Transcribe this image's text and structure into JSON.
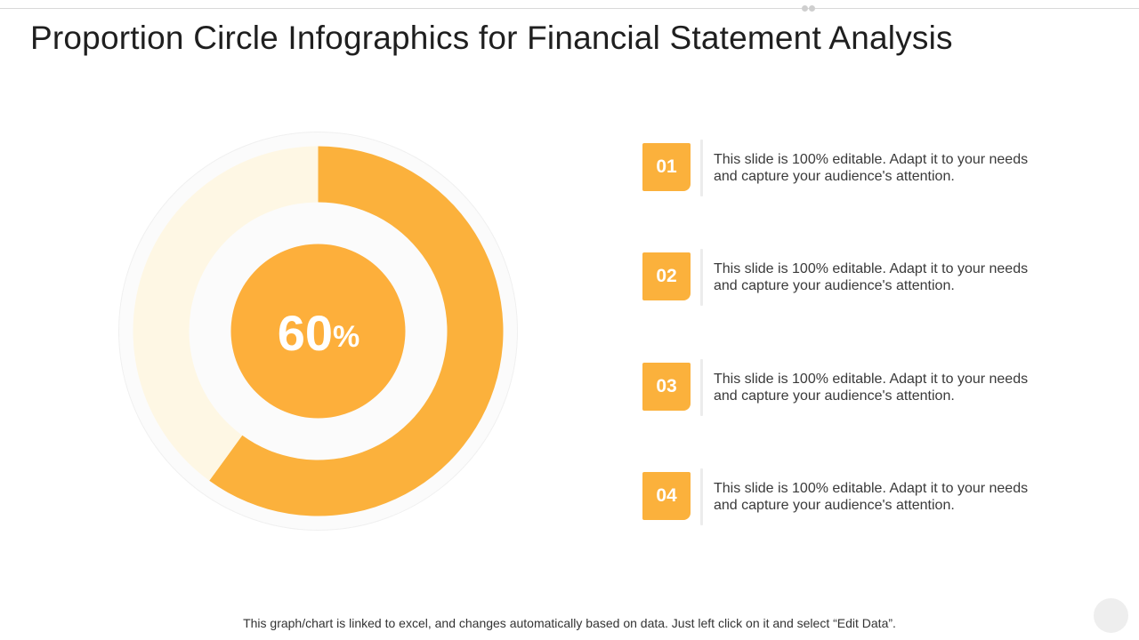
{
  "slide": {
    "title": "Proportion Circle Infographics for Financial Statement Analysis",
    "footnote": "This graph/chart is linked to excel, and changes automatically based on data. Just left click on it and select “Edit Data”."
  },
  "colors": {
    "accent": "#fbb13c",
    "center_fill": "#fdaf3b",
    "remainder": "#fef7e4",
    "outer_ring": "#fbfbfb"
  },
  "chart_data": {
    "type": "pie",
    "values": [
      60,
      40
    ],
    "center_label": {
      "number": "60",
      "unit": "%"
    }
  },
  "items": [
    {
      "number": "01",
      "text": "This slide is 100% editable. Adapt it to your needs and capture your audience's attention."
    },
    {
      "number": "02",
      "text": "This slide is 100% editable. Adapt it to your needs and capture your audience's attention."
    },
    {
      "number": "03",
      "text": "This slide is 100% editable. Adapt it to your needs and capture your audience's attention."
    },
    {
      "number": "04",
      "text": "This slide is 100% editable. Adapt it to your needs and capture your audience's attention."
    }
  ]
}
